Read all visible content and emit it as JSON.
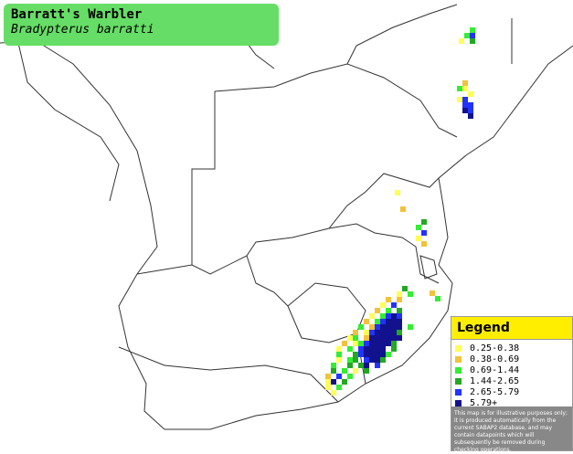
{
  "header": {
    "title": "Barratt's Warbler",
    "subtitle": "Bradypterus barratti"
  },
  "legend": {
    "title": "Legend",
    "items": [
      {
        "label": "0.25-0.38",
        "color": "#ffff55"
      },
      {
        "label": "0.38-0.69",
        "color": "#f2c23a"
      },
      {
        "label": "0.69-1.44",
        "color": "#33ee33"
      },
      {
        "label": "1.44-2.65",
        "color": "#22a822"
      },
      {
        "label": "2.65-5.79",
        "color": "#2233ff"
      },
      {
        "label": "5.79+",
        "color": "#12128f"
      }
    ],
    "note": "This map is for illustrative purposes only; it is produced automatically from the current SABAP2 database, and may contain datapoints which will subsequently be removed during checking operations."
  }
}
